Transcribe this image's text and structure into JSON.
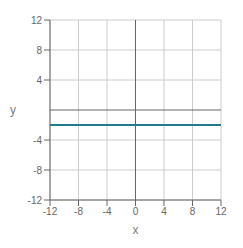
{
  "chart_data": {
    "type": "line",
    "x": [
      -12,
      12
    ],
    "values": [
      -2,
      -2
    ],
    "color": "#1f7a8c",
    "xlim": [
      -12,
      12
    ],
    "ylim": [
      -12,
      12
    ],
    "xticks": [
      -12,
      -8,
      -4,
      0,
      4,
      8,
      12
    ],
    "yticks": [
      -12,
      -8,
      -4,
      4,
      8,
      12
    ],
    "xlabel": "x",
    "ylabel": "y",
    "grid": true
  }
}
